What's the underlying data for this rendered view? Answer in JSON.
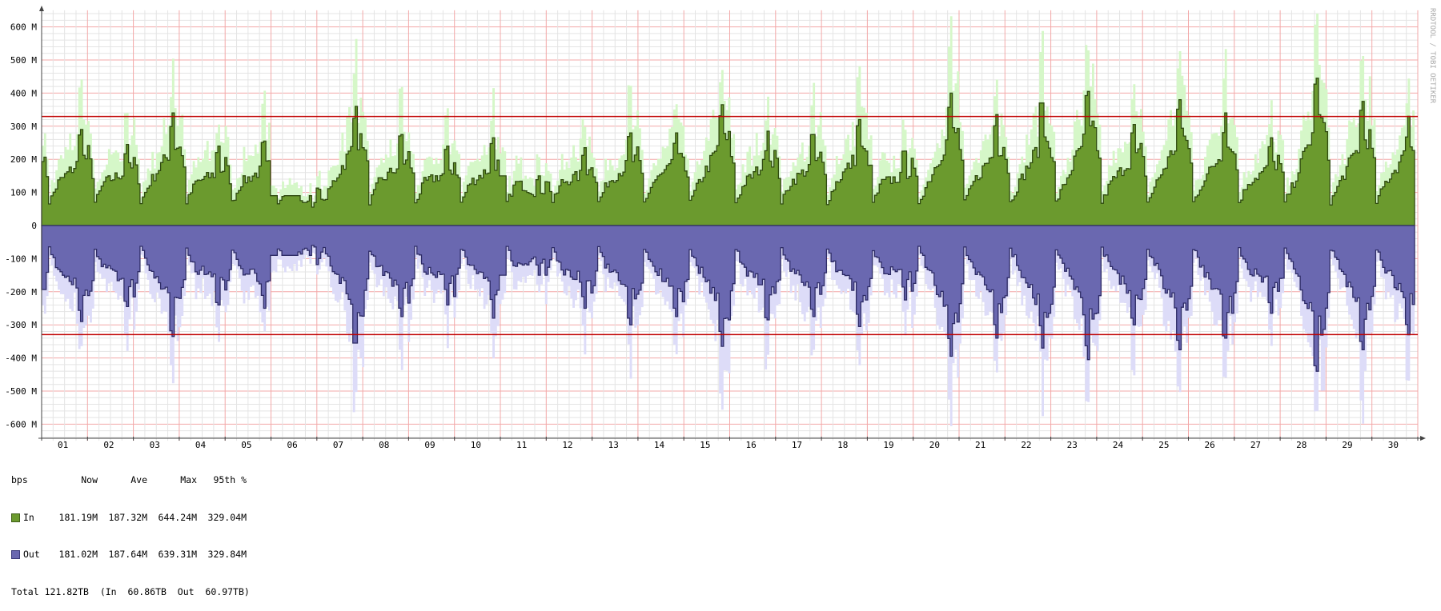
{
  "chart_data": {
    "type": "area",
    "title": "",
    "ylabel": "",
    "unit": "bps",
    "ylim": [
      -600000000,
      600000000
    ],
    "y_ticks": [
      {
        "value": 600,
        "label": "600 M"
      },
      {
        "value": 500,
        "label": "500 M"
      },
      {
        "value": 400,
        "label": "400 M"
      },
      {
        "value": 300,
        "label": "300 M"
      },
      {
        "value": 200,
        "label": "200 M"
      },
      {
        "value": 100,
        "label": "100 M"
      },
      {
        "value": 0,
        "label": "0"
      },
      {
        "value": -100,
        "label": "-100 M"
      },
      {
        "value": -200,
        "label": "-200 M"
      },
      {
        "value": -300,
        "label": "-300 M"
      },
      {
        "value": -400,
        "label": "-400 M"
      },
      {
        "value": -500,
        "label": "-500 M"
      },
      {
        "value": -600,
        "label": "-600 M"
      }
    ],
    "x_labels": [
      "01",
      "02",
      "03",
      "04",
      "05",
      "06",
      "07",
      "08",
      "09",
      "10",
      "11",
      "12",
      "13",
      "14",
      "15",
      "16",
      "17",
      "18",
      "19",
      "20",
      "21",
      "22",
      "23",
      "24",
      "25",
      "26",
      "27",
      "28",
      "29",
      "30"
    ],
    "series": [
      {
        "name": "In",
        "color": "#6b9a2e",
        "max_color": "#d5f7c8",
        "daily_peak_M": [
          290,
          245,
          340,
          240,
          255,
          90,
          360,
          275,
          240,
          265,
          150,
          235,
          280,
          280,
          365,
          285,
          275,
          320,
          225,
          400,
          335,
          370,
          405,
          305,
          380,
          340,
          265,
          445,
          375,
          330
        ]
      },
      {
        "name": "Out",
        "color": "#6a68b0",
        "max_color": "#dddcf8",
        "daily_peak_M": [
          290,
          245,
          335,
          240,
          250,
          90,
          355,
          275,
          240,
          280,
          150,
          250,
          300,
          275,
          365,
          285,
          275,
          305,
          225,
          395,
          340,
          370,
          405,
          300,
          375,
          340,
          265,
          440,
          375,
          330
        ]
      }
    ],
    "percentile_95_M": 329.5,
    "percentile_95_color": "#c00000",
    "grid": true,
    "watermark": "RRDTOOL / TOBI OETIKER"
  },
  "legend": {
    "header": {
      "unit": "bps",
      "now": "Now",
      "ave": "Ave",
      "max": "Max",
      "p95": "95th %"
    },
    "rows": [
      {
        "name": "In",
        "now": "181.19M",
        "ave": "187.32M",
        "max": "644.24M",
        "p95": "329.04M"
      },
      {
        "name": "Out",
        "now": "181.02M",
        "ave": "187.64M",
        "max": "639.31M",
        "p95": "329.84M"
      }
    ],
    "total": {
      "label": "Total",
      "value": "121.82TB",
      "in_label": "(In",
      "in_value": "60.86TB",
      "out_label": "Out",
      "out_value": "60.97TB)"
    }
  }
}
